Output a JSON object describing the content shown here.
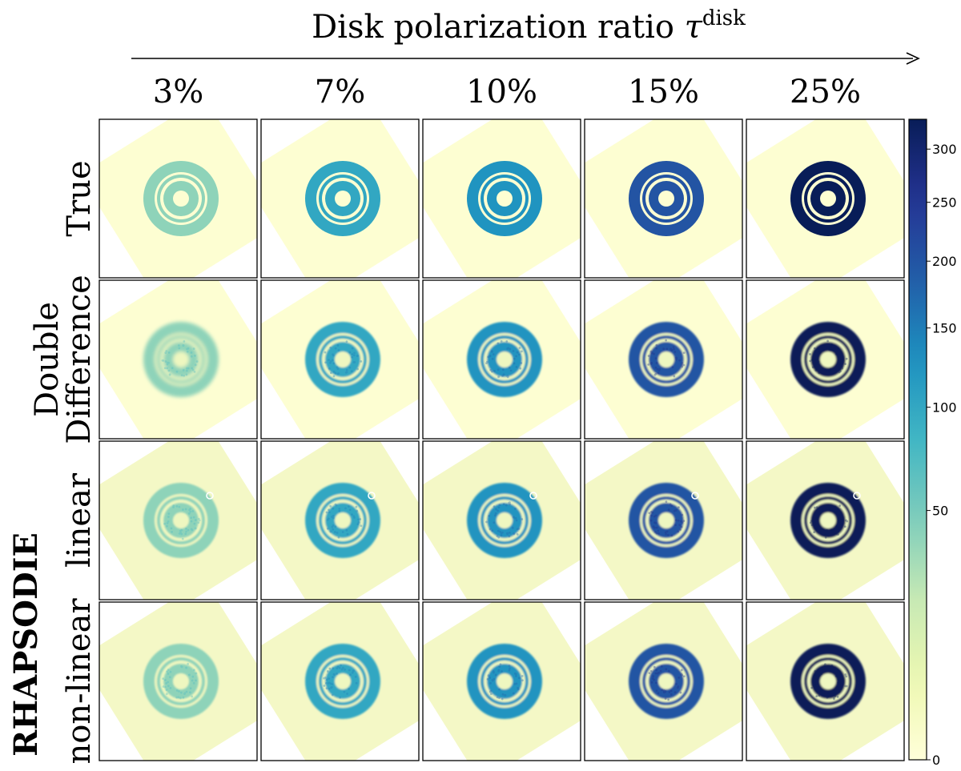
{
  "figure": {
    "title_main": "Disk polarization ratio ",
    "title_symbol": "τ",
    "title_sup": "disk",
    "group_label": "RHAPSODIE"
  },
  "columns": [
    "3%",
    "7%",
    "10%",
    "15%",
    "25%"
  ],
  "rows": [
    {
      "lines": [
        "True"
      ],
      "type": "true"
    },
    {
      "lines": [
        "Double",
        "Difference"
      ],
      "type": "dd"
    },
    {
      "lines": [
        "linear"
      ],
      "type": "lin"
    },
    {
      "lines": [
        "non-linear"
      ],
      "type": "nonlin"
    }
  ],
  "colorbar": {
    "colormap": "YlGnBu",
    "scale": "sqrt",
    "range": [
      0,
      330
    ],
    "ticks": [
      {
        "value": 0,
        "label": "0"
      },
      {
        "value": 50,
        "label": "50"
      },
      {
        "value": 100,
        "label": "100"
      },
      {
        "value": 150,
        "label": "150"
      },
      {
        "value": 200,
        "label": "200"
      },
      {
        "value": 250,
        "label": "250"
      },
      {
        "value": 300,
        "label": "300"
      }
    ]
  },
  "ring_intensity": [
    40,
    100,
    125,
    200,
    330
  ],
  "colors": {
    "background_square": "#fdfed2",
    "white": "#ffffff",
    "stops": [
      "#ffffd9",
      "#edf8b1",
      "#c7e9b4",
      "#7fcdbb",
      "#41b6c4",
      "#1d91c0",
      "#225ea8",
      "#253494",
      "#081d58"
    ]
  }
}
